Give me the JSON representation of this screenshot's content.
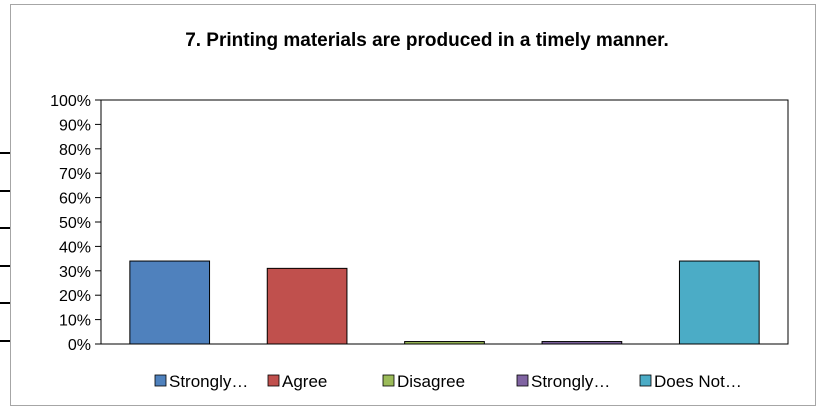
{
  "chart_data": {
    "type": "bar",
    "title": "7. Printing materials are produced in a timely manner.",
    "categories": [
      "Strongly…",
      "Agree",
      "Disagree",
      "Strongly…",
      "Does Not…"
    ],
    "values": [
      0.34,
      0.31,
      0.01,
      0.01,
      0.34
    ],
    "colors": [
      "#4f81bd",
      "#c0504d",
      "#9bbb59",
      "#8064a2",
      "#4bacc6"
    ],
    "ylim": [
      0,
      1
    ],
    "yticks": [
      "0%",
      "10%",
      "20%",
      "30%",
      "40%",
      "50%",
      "60%",
      "70%",
      "80%",
      "90%",
      "100%"
    ],
    "grid": false,
    "legend": "bottom"
  }
}
